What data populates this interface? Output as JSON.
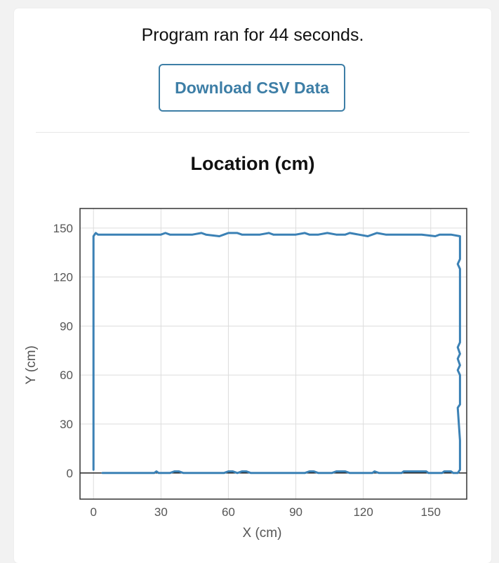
{
  "status_text": "Program ran for 44 seconds.",
  "download_button_label": "Download CSV Data",
  "colors": {
    "accent": "#3d7ea6",
    "line": "#3b81b5",
    "grid": "#dddddd",
    "frame": "#333333"
  },
  "chart_data": {
    "type": "line",
    "title": "Location (cm)",
    "xlabel": "X (cm)",
    "ylabel": "Y (cm)",
    "xlim": [
      -6,
      166
    ],
    "ylim": [
      -16,
      162
    ],
    "xticks": [
      0,
      30,
      60,
      90,
      120,
      150
    ],
    "yticks": [
      0,
      30,
      60,
      90,
      120,
      150
    ],
    "xtick_labels": [
      "0",
      "30",
      "60",
      "90",
      "120",
      "150"
    ],
    "ytick_labels": [
      "0",
      "30",
      "60",
      "90",
      "120",
      "150"
    ],
    "grid": true,
    "legend": "none",
    "series": [
      {
        "values": [
          [
            4,
            0
          ],
          [
            10,
            0
          ],
          [
            20,
            0
          ],
          [
            27,
            0
          ],
          [
            28,
            1
          ],
          [
            29,
            0
          ],
          [
            34,
            0
          ],
          [
            36,
            1
          ],
          [
            38,
            1
          ],
          [
            40,
            0
          ],
          [
            50,
            0
          ],
          [
            58,
            0
          ],
          [
            60,
            1
          ],
          [
            62,
            1
          ],
          [
            64,
            0
          ],
          [
            66,
            1
          ],
          [
            68,
            1
          ],
          [
            70,
            0
          ],
          [
            80,
            0
          ],
          [
            90,
            0
          ],
          [
            94,
            0
          ],
          [
            96,
            1
          ],
          [
            98,
            1
          ],
          [
            100,
            0
          ],
          [
            106,
            0
          ],
          [
            108,
            1
          ],
          [
            112,
            1
          ],
          [
            114,
            0
          ],
          [
            120,
            0
          ],
          [
            124,
            0
          ],
          [
            125,
            1
          ],
          [
            127,
            0
          ],
          [
            137,
            0
          ],
          [
            138,
            1
          ],
          [
            148,
            1
          ],
          [
            149,
            0
          ],
          [
            155,
            0
          ],
          [
            156,
            1
          ],
          [
            159,
            1
          ],
          [
            160,
            0
          ],
          [
            162,
            0
          ],
          [
            163,
            2
          ],
          [
            163,
            20
          ],
          [
            162,
            40
          ],
          [
            163,
            42
          ],
          [
            163,
            60
          ],
          [
            162,
            63
          ],
          [
            163,
            66
          ],
          [
            162,
            70
          ],
          [
            163,
            73
          ],
          [
            162,
            77
          ],
          [
            163,
            80
          ],
          [
            163,
            86
          ],
          [
            163,
            125
          ],
          [
            162,
            128
          ],
          [
            163,
            131
          ],
          [
            163,
            145
          ],
          [
            159,
            146
          ],
          [
            154,
            146
          ],
          [
            152,
            145
          ],
          [
            146,
            146
          ],
          [
            130,
            146
          ],
          [
            126,
            147
          ],
          [
            122,
            145
          ],
          [
            118,
            146
          ],
          [
            114,
            147
          ],
          [
            112,
            146
          ],
          [
            108,
            146
          ],
          [
            104,
            147
          ],
          [
            100,
            146
          ],
          [
            96,
            146
          ],
          [
            94,
            147
          ],
          [
            90,
            146
          ],
          [
            80,
            146
          ],
          [
            78,
            147
          ],
          [
            74,
            146
          ],
          [
            70,
            146
          ],
          [
            66,
            146
          ],
          [
            64,
            147
          ],
          [
            60,
            147
          ],
          [
            58,
            146
          ],
          [
            56,
            145
          ],
          [
            50,
            146
          ],
          [
            48,
            147
          ],
          [
            44,
            146
          ],
          [
            40,
            146
          ],
          [
            34,
            146
          ],
          [
            32,
            147
          ],
          [
            30,
            146
          ],
          [
            20,
            146
          ],
          [
            10,
            146
          ],
          [
            2,
            146
          ],
          [
            1,
            147
          ],
          [
            0,
            145
          ],
          [
            0,
            120
          ],
          [
            0,
            60
          ],
          [
            0,
            2
          ]
        ]
      }
    ]
  }
}
